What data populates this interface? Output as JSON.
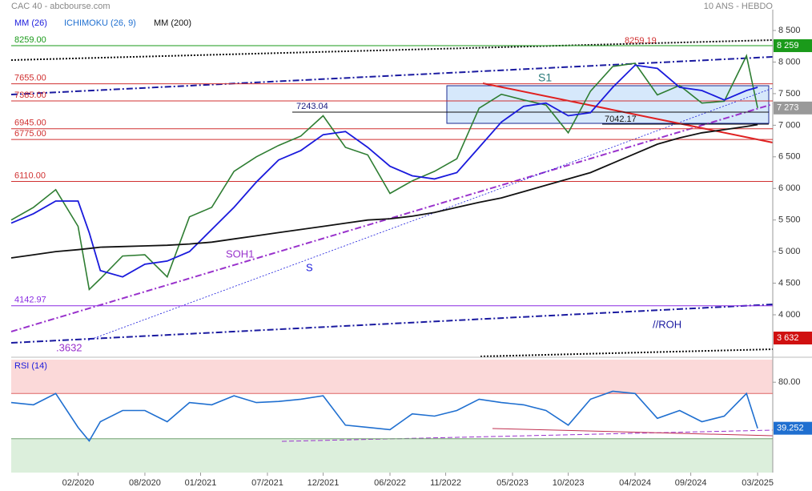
{
  "header": {
    "left": "CAC 40 - abcbourse.com",
    "right": "10 ANS - HEBDO"
  },
  "chart_data": [
    {
      "type": "line",
      "legend_extra": {
        "name": "ICHIMOKU (26, 9)",
        "color": "#1f6fd0"
      },
      "x": [
        "2019-08",
        "2019-10",
        "2019-12",
        "2020-02",
        "2020-03",
        "2020-04",
        "2020-06",
        "2020-08",
        "2020-10",
        "2020-12",
        "2021-02",
        "2021-04",
        "2021-06",
        "2021-08",
        "2021-10",
        "2021-12",
        "2022-02",
        "2022-04",
        "2022-06",
        "2022-08",
        "2022-10",
        "2022-12",
        "2023-02",
        "2023-04",
        "2023-06",
        "2023-08",
        "2023-10",
        "2023-12",
        "2024-02",
        "2024-04",
        "2024-06",
        "2024-08",
        "2024-10",
        "2024-12",
        "2025-02",
        "2025-03"
      ],
      "xlim": [
        "2019-08",
        "2025-04"
      ],
      "series": [
        {
          "color": "#2e7d32",
          "values": [
            5500,
            5700,
            5980,
            5400,
            4400,
            4570,
            4930,
            4950,
            4600,
            5550,
            5700,
            6270,
            6500,
            6680,
            6830,
            7150,
            6650,
            6530,
            5920,
            6120,
            6270,
            6470,
            7270,
            7490,
            7400,
            7320,
            6880,
            7540,
            7930,
            7980,
            7480,
            7630,
            7350,
            7380,
            8100,
            7273
          ]
        },
        {
          "name": "MM (26)",
          "color": "#1a1adc",
          "values": [
            5450,
            5600,
            5800,
            5800,
            5300,
            4700,
            4600,
            4800,
            4850,
            5000,
            5350,
            5700,
            6100,
            6450,
            6600,
            6850,
            6900,
            6650,
            6350,
            6200,
            6150,
            6250,
            6650,
            7050,
            7300,
            7350,
            7150,
            7200,
            7600,
            7950,
            7900,
            7600,
            7550,
            7400,
            7550,
            7600
          ]
        },
        {
          "name": "MM (200)",
          "color": "#111111",
          "values": [
            4900,
            4950,
            5000,
            5030,
            5050,
            5070,
            5080,
            5090,
            5100,
            5120,
            5150,
            5200,
            5250,
            5300,
            5350,
            5400,
            5450,
            5500,
            5520,
            5560,
            5620,
            5700,
            5780,
            5850,
            5950,
            6050,
            6150,
            6250,
            6400,
            6550,
            6700,
            6800,
            6880,
            6930,
            6980,
            7010
          ]
        }
      ],
      "ylim": [
        3366,
        8830
      ],
      "yticks": [
        {
          "value": 8500,
          "label": "8 500"
        },
        {
          "value": 8000,
          "label": "8 000"
        },
        {
          "value": 7500,
          "label": "7 500"
        },
        {
          "value": 7000,
          "label": "7 000"
        },
        {
          "value": 6500,
          "label": "6 500"
        },
        {
          "value": 6000,
          "label": "6 000"
        },
        {
          "value": 5500,
          "label": "5 500"
        },
        {
          "value": 5000,
          "label": "5 000"
        },
        {
          "value": 4500,
          "label": "4 500"
        },
        {
          "value": 4000,
          "label": "4 000"
        }
      ],
      "levels": [
        {
          "value": 8259,
          "label": "8259.00",
          "color": "#1a9a1a"
        },
        {
          "value": 7655,
          "label": "7655.00",
          "color": "#d03030"
        },
        {
          "value": 7385,
          "label": "7385.00",
          "color": "#d03030"
        },
        {
          "value": 6945,
          "label": "6945.00",
          "color": "#d03030"
        },
        {
          "value": 6775,
          "label": "6775.00",
          "color": "#d03030"
        },
        {
          "value": 6110,
          "label": "6110.00",
          "color": "#d03030"
        },
        {
          "value": 4142.97,
          "label": "4142.97",
          "color": "#8a2be2"
        }
      ],
      "markers": [
        {
          "value": 8259,
          "label": "8 259",
          "color": "#1a9a1a"
        },
        {
          "value": 7273,
          "label": "7 273",
          "color": "#999999"
        },
        {
          "value": 3632,
          "label": "3 632",
          "color": "#d01010"
        }
      ],
      "annotations": [
        "8259.19",
        "7243.04",
        "7042.17",
        "S1",
        "SOH1",
        "S",
        "//ROH",
        ".3632"
      ]
    },
    {
      "type": "line",
      "title": "RSI (14)",
      "x": [
        "2019-08",
        "2019-10",
        "2019-12",
        "2020-02",
        "2020-03",
        "2020-04",
        "2020-06",
        "2020-08",
        "2020-10",
        "2020-12",
        "2021-02",
        "2021-04",
        "2021-06",
        "2021-08",
        "2021-10",
        "2021-12",
        "2022-02",
        "2022-04",
        "2022-06",
        "2022-08",
        "2022-10",
        "2022-12",
        "2023-02",
        "2023-04",
        "2023-06",
        "2023-08",
        "2023-10",
        "2023-12",
        "2024-02",
        "2024-04",
        "2024-06",
        "2024-08",
        "2024-10",
        "2024-12",
        "2025-02",
        "2025-03"
      ],
      "xlim": [
        "2019-08",
        "2025-04"
      ],
      "series": [
        {
          "color": "#1f6fd0",
          "values": [
            62,
            60,
            70,
            40,
            28,
            45,
            55,
            55,
            45,
            62,
            60,
            68,
            62,
            63,
            65,
            68,
            42,
            40,
            38,
            52,
            50,
            55,
            65,
            62,
            60,
            55,
            42,
            65,
            72,
            70,
            48,
            55,
            45,
            50,
            70,
            39.252
          ]
        }
      ],
      "ylim": [
        0,
        100
      ],
      "yticks": [
        {
          "value": 80,
          "label": "80.00"
        }
      ],
      "overbought": 70,
      "oversold": 30,
      "current": 39.252,
      "xticks": [
        {
          "value": "2020-02",
          "label": "02/2020"
        },
        {
          "value": "2020-08",
          "label": "08/2020"
        },
        {
          "value": "2021-01",
          "label": "01/2021"
        },
        {
          "value": "2021-07",
          "label": "07/2021"
        },
        {
          "value": "2021-12",
          "label": "12/2021"
        },
        {
          "value": "2022-06",
          "label": "06/2022"
        },
        {
          "value": "2022-11",
          "label": "11/2022"
        },
        {
          "value": "2023-05",
          "label": "05/2023"
        },
        {
          "value": "2023-10",
          "label": "10/2023"
        },
        {
          "value": "2024-04",
          "label": "04/2024"
        },
        {
          "value": "2024-09",
          "label": "09/2024"
        },
        {
          "value": "2025-03",
          "label": "03/2025"
        }
      ]
    }
  ]
}
